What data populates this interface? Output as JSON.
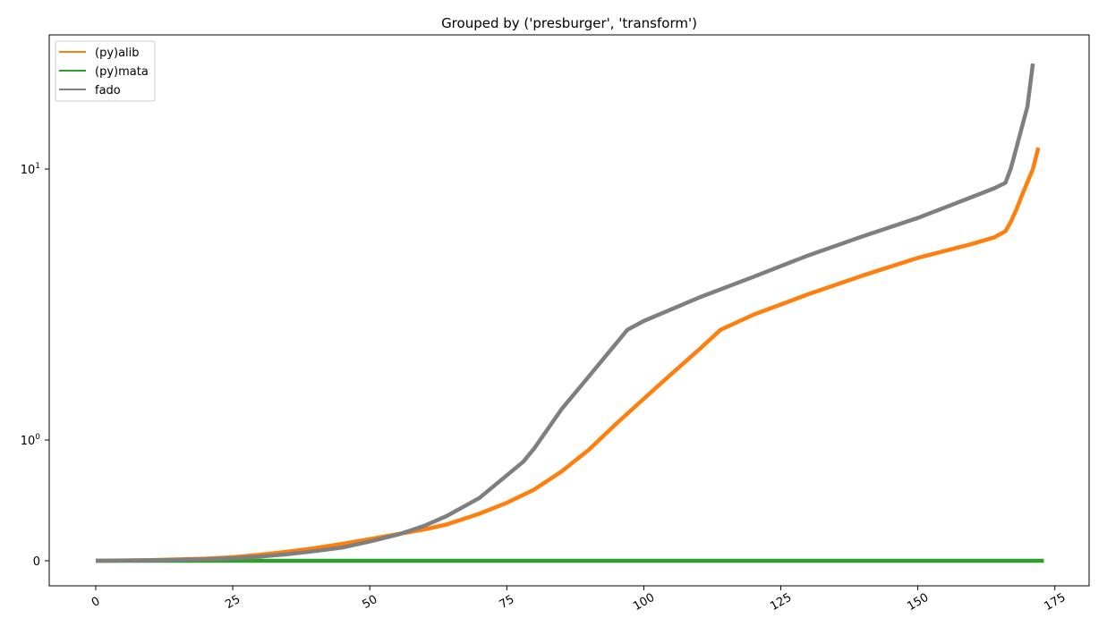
{
  "chart_data": {
    "type": "line",
    "title": "Grouped by ('presburger', 'transform')",
    "xlabel": "",
    "ylabel": "",
    "yscale": "symlog",
    "xlim": [
      -8.5,
      181.5
    ],
    "xticks": [
      "0",
      "25",
      "50",
      "75",
      "100",
      "125",
      "150",
      "175"
    ],
    "ytick_labels": [
      {
        "base": "10",
        "exp": "1",
        "value": 10
      },
      {
        "base": "10",
        "exp": "0",
        "value": 1
      },
      {
        "base": "0",
        "exp": "",
        "value": 0
      }
    ],
    "grid": false,
    "legend_placement": "upper-left",
    "series": [
      {
        "name": "(py)alib",
        "color": "#ff7f0e",
        "x": [
          0,
          10,
          20,
          25,
          30,
          35,
          40,
          45,
          50,
          55,
          60,
          64,
          70,
          75,
          80,
          85,
          90,
          95,
          100,
          105,
          110,
          114,
          120,
          130,
          140,
          150,
          160,
          164,
          166,
          167,
          168,
          169,
          171,
          172
        ],
        "y": [
          0.0,
          0.006,
          0.018,
          0.03,
          0.05,
          0.075,
          0.105,
          0.14,
          0.18,
          0.22,
          0.26,
          0.3,
          0.39,
          0.48,
          0.59,
          0.74,
          0.92,
          1.15,
          1.42,
          1.75,
          2.15,
          2.55,
          2.9,
          3.45,
          4.05,
          4.7,
          5.3,
          5.6,
          5.9,
          6.4,
          7.1,
          8.0,
          10.0,
          12.0
        ]
      },
      {
        "name": "(py)mata",
        "color": "#2ca02c",
        "x": [
          0,
          173
        ],
        "y": [
          0.0,
          0.0
        ]
      },
      {
        "name": "fado",
        "color": "#7f7f7f",
        "x": [
          0,
          10,
          20,
          25,
          30,
          35,
          40,
          45,
          50,
          55,
          60,
          64,
          70,
          78,
          80,
          85,
          90,
          97,
          100,
          110,
          120,
          130,
          140,
          150,
          160,
          164,
          166,
          167,
          168,
          170,
          171
        ],
        "y": [
          0.0,
          0.004,
          0.012,
          0.02,
          0.035,
          0.055,
          0.08,
          0.11,
          0.16,
          0.215,
          0.29,
          0.37,
          0.52,
          0.82,
          0.93,
          1.3,
          1.72,
          2.55,
          2.75,
          3.35,
          4.0,
          4.8,
          5.65,
          6.6,
          7.9,
          8.5,
          8.9,
          10.1,
          12.0,
          17.0,
          24.5
        ]
      }
    ]
  }
}
